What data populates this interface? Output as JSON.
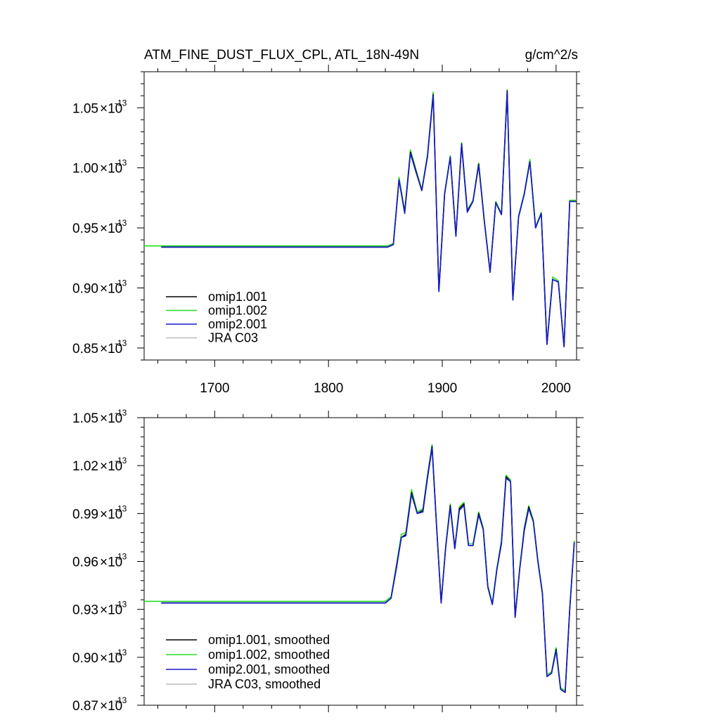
{
  "header": {
    "title": "ATM_FINE_DUST_FLUX_CPL, ATL_18N-49N",
    "units": "g/cm^2/s"
  },
  "colors": {
    "omip1.001": "#000000",
    "omip1.002": "#22dd22",
    "omip2.001": "#1a1acc",
    "JRA C03": "#bbbbbb"
  },
  "chart_data": [
    {
      "type": "line",
      "xlim": [
        1638,
        2018
      ],
      "ylim": [
        0.84,
        1.08
      ],
      "y_exponent": "-13",
      "x_ticks": [
        1700,
        1800,
        1900,
        2000
      ],
      "x_tick_labels": [
        "1700",
        "1800",
        "1900",
        "2000"
      ],
      "y_ticks": [
        0.85,
        0.9,
        0.95,
        1.0,
        1.05
      ],
      "y_tick_labels": [
        "0.85",
        "0.90",
        "0.95",
        "1.00",
        "1.05"
      ],
      "legend_position": "bottom-left",
      "grid": false,
      "series": [
        {
          "name": "omip1.001",
          "x": [
            1653,
            1852,
            1857,
            1862,
            1867,
            1872,
            1877,
            1882,
            1887,
            1892,
            1897,
            1902,
            1907,
            1912,
            1917,
            1922,
            1927,
            1932,
            1937,
            1942,
            1947,
            1952,
            1957,
            1962,
            1967,
            1972,
            1977,
            1982,
            1987,
            1992,
            1997,
            2002,
            2007,
            2012,
            2018
          ],
          "y": [
            0.934,
            0.934,
            0.936,
            0.99,
            0.963,
            1.013,
            0.997,
            0.981,
            1.01,
            1.061,
            0.897,
            0.978,
            1.009,
            0.943,
            1.02,
            0.964,
            0.972,
            1.003,
            0.955,
            0.913,
            0.971,
            0.961,
            1.064,
            0.89,
            0.959,
            0.978,
            1.005,
            0.95,
            0.962,
            0.853,
            0.907,
            0.905,
            0.851,
            0.972,
            0.972
          ]
        },
        {
          "name": "omip1.002",
          "x": [
            1638,
            1852,
            1857,
            1862,
            1867,
            1872,
            1877,
            1882,
            1887,
            1892,
            1897,
            1902,
            1907,
            1912,
            1917,
            1922,
            1927,
            1932,
            1937,
            1942,
            1947,
            1952,
            1957,
            1962,
            1967,
            1972,
            1977,
            1982,
            1987,
            1992,
            1997,
            2002,
            2007,
            2012,
            2018
          ],
          "y": [
            0.935,
            0.935,
            0.937,
            0.992,
            0.964,
            1.015,
            0.998,
            0.982,
            1.011,
            1.063,
            0.898,
            0.979,
            1.01,
            0.944,
            1.021,
            0.965,
            0.973,
            1.004,
            0.956,
            0.914,
            0.972,
            0.962,
            1.065,
            0.891,
            0.96,
            0.979,
            1.007,
            0.951,
            0.963,
            0.854,
            0.909,
            0.906,
            0.852,
            0.973,
            0.973
          ]
        },
        {
          "name": "omip2.001",
          "x": [
            1653,
            1852,
            1857,
            1862,
            1867,
            1872,
            1877,
            1882,
            1887,
            1892,
            1897,
            1902,
            1907,
            1912,
            1917,
            1922,
            1927,
            1932,
            1937,
            1942,
            1947,
            1952,
            1957,
            1962,
            1967,
            1972,
            1977,
            1982,
            1987,
            1992,
            1997,
            2002,
            2007,
            2012,
            2018
          ],
          "y": [
            0.934,
            0.934,
            0.936,
            0.99,
            0.962,
            1.012,
            0.996,
            0.981,
            1.009,
            1.06,
            0.897,
            0.978,
            1.009,
            0.943,
            1.019,
            0.963,
            0.972,
            1.002,
            0.955,
            0.913,
            0.971,
            0.961,
            1.063,
            0.89,
            0.959,
            0.978,
            1.005,
            0.95,
            0.962,
            0.853,
            0.907,
            0.905,
            0.851,
            0.972,
            0.972
          ]
        },
        {
          "name": "JRA C03",
          "x": [],
          "y": []
        }
      ]
    },
    {
      "type": "line",
      "xlim": [
        1638,
        2018
      ],
      "ylim": [
        0.87,
        1.05
      ],
      "y_exponent": "-13",
      "x_ticks": [
        1700,
        1800,
        1900,
        2000
      ],
      "x_tick_labels": [
        "",
        "",
        "",
        ""
      ],
      "y_ticks": [
        0.87,
        0.9,
        0.93,
        0.96,
        0.99,
        1.02,
        1.05
      ],
      "y_tick_labels": [
        "0.87",
        "0.90",
        "0.93",
        "0.96",
        "0.99",
        "1.02",
        "1.05"
      ],
      "legend_position": "bottom-left",
      "grid": false,
      "series": [
        {
          "name": "omip1.001, smoothed",
          "x": [
            1653,
            1850,
            1855,
            1860,
            1864,
            1868,
            1873,
            1878,
            1883,
            1887,
            1891,
            1895,
            1899,
            1903,
            1907,
            1911,
            1915,
            1919,
            1923,
            1927,
            1932,
            1936,
            1940,
            1944,
            1948,
            1952,
            1956,
            1960,
            1964,
            1968,
            1972,
            1976,
            1980,
            1984,
            1988,
            1992,
            1996,
            2000,
            2004,
            2008,
            2012,
            2016
          ],
          "y": [
            0.934,
            0.934,
            0.937,
            0.958,
            0.975,
            0.977,
            1.003,
            0.99,
            0.992,
            1.013,
            1.032,
            0.982,
            0.934,
            0.969,
            0.995,
            0.968,
            0.993,
            0.996,
            0.97,
            0.97,
            0.99,
            0.98,
            0.944,
            0.933,
            0.955,
            0.972,
            1.013,
            1.01,
            0.925,
            0.955,
            0.98,
            0.994,
            0.985,
            0.96,
            0.94,
            0.888,
            0.89,
            0.905,
            0.88,
            0.878,
            0.93,
            0.972
          ]
        },
        {
          "name": "omip1.002, smoothed",
          "x": [
            1638,
            1850,
            1855,
            1860,
            1864,
            1868,
            1873,
            1878,
            1883,
            1887,
            1891,
            1895,
            1899,
            1903,
            1907,
            1911,
            1915,
            1919,
            1923,
            1927,
            1932,
            1936,
            1940,
            1944,
            1948,
            1952,
            1956,
            1960,
            1964,
            1968,
            1972,
            1976,
            1980,
            1984,
            1988,
            1992,
            1996,
            2000,
            2004,
            2008,
            2012,
            2016
          ],
          "y": [
            0.935,
            0.935,
            0.938,
            0.959,
            0.977,
            0.978,
            1.005,
            0.991,
            0.993,
            1.014,
            1.033,
            0.983,
            0.935,
            0.97,
            0.996,
            0.969,
            0.994,
            0.997,
            0.971,
            0.971,
            0.991,
            0.981,
            0.945,
            0.934,
            0.956,
            0.973,
            1.014,
            1.011,
            0.926,
            0.956,
            0.981,
            0.995,
            0.986,
            0.961,
            0.941,
            0.889,
            0.891,
            0.906,
            0.881,
            0.879,
            0.931,
            0.973
          ]
        },
        {
          "name": "omip2.001, smoothed",
          "x": [
            1653,
            1850,
            1855,
            1860,
            1864,
            1868,
            1873,
            1878,
            1883,
            1887,
            1891,
            1895,
            1899,
            1903,
            1907,
            1911,
            1915,
            1919,
            1923,
            1927,
            1932,
            1936,
            1940,
            1944,
            1948,
            1952,
            1956,
            1960,
            1964,
            1968,
            1972,
            1976,
            1980,
            1984,
            1988,
            1992,
            1996,
            2000,
            2004,
            2008,
            2012,
            2016
          ],
          "y": [
            0.934,
            0.934,
            0.937,
            0.957,
            0.975,
            0.976,
            1.002,
            0.99,
            0.991,
            1.012,
            1.031,
            0.982,
            0.934,
            0.969,
            0.994,
            0.968,
            0.992,
            0.995,
            0.97,
            0.97,
            0.989,
            0.98,
            0.944,
            0.933,
            0.955,
            0.971,
            1.012,
            1.01,
            0.925,
            0.955,
            0.979,
            0.993,
            0.985,
            0.96,
            0.94,
            0.888,
            0.89,
            0.904,
            0.88,
            0.878,
            0.93,
            0.972
          ]
        },
        {
          "name": "JRA C03, smoothed",
          "x": [],
          "y": []
        }
      ]
    }
  ]
}
